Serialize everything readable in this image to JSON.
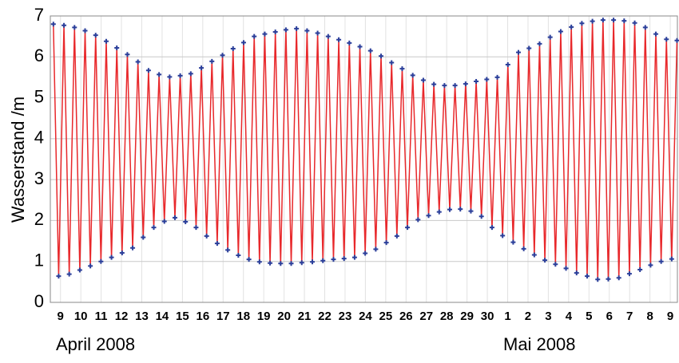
{
  "chart_data": {
    "type": "line",
    "ylabel": "Wasserstand /m",
    "annotations": [
      "April 2008",
      "Mai 2008"
    ],
    "xlim": [
      0,
      30.85
    ],
    "ylim": [
      0,
      7
    ],
    "yticks": [
      0,
      1,
      2,
      3,
      4,
      5,
      6,
      7
    ],
    "xticks": [
      {
        "value": 0.5,
        "label": "9"
      },
      {
        "value": 1.5,
        "label": "10"
      },
      {
        "value": 2.5,
        "label": "11"
      },
      {
        "value": 3.5,
        "label": "12"
      },
      {
        "value": 4.5,
        "label": "13"
      },
      {
        "value": 5.5,
        "label": "14"
      },
      {
        "value": 6.5,
        "label": "15"
      },
      {
        "value": 7.5,
        "label": "16"
      },
      {
        "value": 8.5,
        "label": "17"
      },
      {
        "value": 9.5,
        "label": "18"
      },
      {
        "value": 10.5,
        "label": "19"
      },
      {
        "value": 11.5,
        "label": "20"
      },
      {
        "value": 12.5,
        "label": "21"
      },
      {
        "value": 13.5,
        "label": "22"
      },
      {
        "value": 14.5,
        "label": "23"
      },
      {
        "value": 15.5,
        "label": "24"
      },
      {
        "value": 16.5,
        "label": "25"
      },
      {
        "value": 17.5,
        "label": "26"
      },
      {
        "value": 18.5,
        "label": "27"
      },
      {
        "value": 19.5,
        "label": "28"
      },
      {
        "value": 20.5,
        "label": "29"
      },
      {
        "value": 21.5,
        "label": "30"
      },
      {
        "value": 22.5,
        "label": "1"
      },
      {
        "value": 23.5,
        "label": "2"
      },
      {
        "value": 24.5,
        "label": "3"
      },
      {
        "value": 25.5,
        "label": "4"
      },
      {
        "value": 26.5,
        "label": "5"
      },
      {
        "value": 27.5,
        "label": "6"
      },
      {
        "value": 28.5,
        "label": "7"
      },
      {
        "value": 29.5,
        "label": "8"
      },
      {
        "value": 30.5,
        "label": "9"
      }
    ],
    "grid": true,
    "marker_color": "#2b3f9a",
    "series": [
      {
        "color": "#e8282b",
        "x": [
          0.15,
          0.41,
          0.67,
          0.93,
          1.19,
          1.45,
          1.71,
          1.97,
          2.23,
          2.49,
          2.75,
          3.01,
          3.27,
          3.53,
          3.79,
          4.05,
          4.31,
          4.57,
          4.83,
          5.09,
          5.35,
          5.61,
          5.87,
          6.13,
          6.39,
          6.65,
          6.91,
          7.17,
          7.43,
          7.69,
          7.95,
          8.21,
          8.47,
          8.73,
          8.99,
          9.25,
          9.51,
          9.77,
          10.03,
          10.29,
          10.55,
          10.81,
          11.07,
          11.33,
          11.59,
          11.85,
          12.11,
          12.37,
          12.63,
          12.89,
          13.15,
          13.41,
          13.67,
          13.93,
          14.19,
          14.45,
          14.71,
          14.97,
          15.23,
          15.49,
          15.75,
          16.01,
          16.27,
          16.53,
          16.79,
          17.05,
          17.31,
          17.57,
          17.83,
          18.09,
          18.35,
          18.61,
          18.87,
          19.13,
          19.39,
          19.65,
          19.91,
          20.17,
          20.43,
          20.69,
          20.95,
          21.21,
          21.47,
          21.73,
          21.99,
          22.25,
          22.51,
          22.77,
          23.03,
          23.29,
          23.55,
          23.81,
          24.07,
          24.33,
          24.59,
          24.85,
          25.11,
          25.37,
          25.63,
          25.89,
          26.15,
          26.41,
          26.67,
          26.93,
          27.19,
          27.45,
          27.71,
          27.97,
          28.23,
          28.49,
          28.75,
          29.01,
          29.27,
          29.53,
          29.79,
          30.05,
          30.31,
          30.57,
          30.83
        ],
        "values": [
          6.8,
          0.64,
          6.77,
          0.69,
          6.72,
          0.79,
          6.64,
          0.89,
          6.53,
          1.0,
          6.38,
          1.1,
          6.22,
          1.21,
          6.06,
          1.33,
          5.88,
          1.59,
          5.67,
          1.83,
          5.57,
          1.98,
          5.51,
          2.07,
          5.54,
          1.97,
          5.59,
          1.83,
          5.73,
          1.62,
          5.89,
          1.44,
          6.04,
          1.28,
          6.2,
          1.15,
          6.35,
          1.05,
          6.5,
          0.99,
          6.56,
          0.96,
          6.61,
          0.95,
          6.66,
          0.95,
          6.69,
          0.97,
          6.64,
          0.99,
          6.58,
          1.02,
          6.5,
          1.05,
          6.42,
          1.07,
          6.34,
          1.1,
          6.25,
          1.2,
          6.15,
          1.3,
          6.02,
          1.46,
          5.86,
          1.62,
          5.71,
          1.83,
          5.55,
          2.02,
          5.43,
          2.12,
          5.33,
          2.21,
          5.3,
          2.27,
          5.3,
          2.28,
          5.34,
          2.23,
          5.4,
          2.1,
          5.45,
          1.83,
          5.5,
          1.63,
          5.81,
          1.47,
          6.11,
          1.31,
          6.21,
          1.16,
          6.32,
          1.03,
          6.48,
          0.93,
          6.62,
          0.83,
          6.73,
          0.72,
          6.82,
          0.64,
          6.87,
          0.56,
          6.9,
          0.57,
          6.9,
          0.6,
          6.88,
          0.7,
          6.83,
          0.8,
          6.72,
          0.91,
          6.56,
          1.0,
          6.43,
          1.06,
          6.4
        ]
      }
    ]
  }
}
